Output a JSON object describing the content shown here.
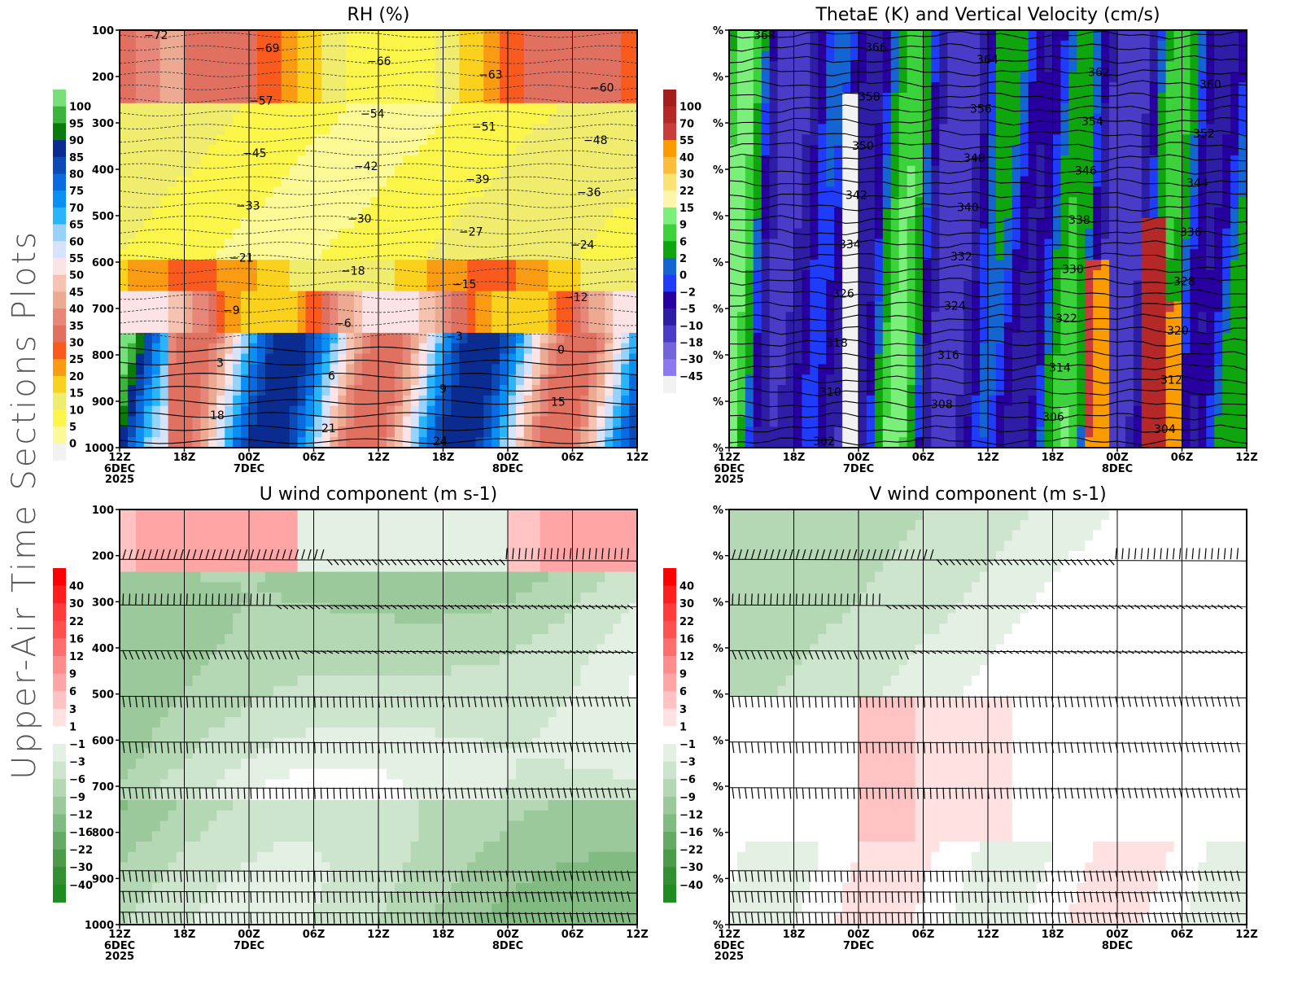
{
  "page_title": "Upper-Air Time Sections Plots",
  "chart_data": [
    {
      "id": "rh",
      "type": "heatmap",
      "title": "RH (%)",
      "xlabel": "",
      "ylabel": "",
      "x_ticks": [
        "12Z",
        "18Z",
        "00Z",
        "06Z",
        "12Z",
        "18Z",
        "00Z",
        "06Z",
        "12Z"
      ],
      "x_date_labels": [
        {
          "index": 0,
          "lines": [
            "6DEC",
            "2025"
          ]
        },
        {
          "index": 2,
          "lines": [
            "7DEC"
          ]
        },
        {
          "index": 6,
          "lines": [
            "8DEC"
          ]
        }
      ],
      "y_ticks": [
        "100",
        "200",
        "300",
        "400",
        "500",
        "600",
        "700",
        "800",
        "900",
        "1000"
      ],
      "y_range": [
        100,
        1000
      ],
      "y_inverted": true,
      "colorbar": {
        "levels": [
          "100",
          "95",
          "90",
          "85",
          "80",
          "75",
          "70",
          "65",
          "60",
          "55",
          "50",
          "45",
          "40",
          "35",
          "30",
          "25",
          "20",
          "15",
          "10",
          "5",
          "0"
        ],
        "colors": [
          "#77e07a",
          "#3cb43c",
          "#0a7a0a",
          "#0a2b8f",
          "#0a4bb8",
          "#0a6be0",
          "#0a8ff5",
          "#2ab4fa",
          "#96d2fa",
          "#d7e3fa",
          "#fce3e6",
          "#f5c3b0",
          "#ebaa91",
          "#e6877a",
          "#e07060",
          "#fa5a1e",
          "#fa9b14",
          "#fad21e",
          "#f0ec6e",
          "#fcf54a",
          "#fcfa96",
          "#f2f2f2"
        ]
      },
      "overlay_contours": {
        "variable": "temperature",
        "labels": [
          "-72",
          "-69",
          "-66",
          "-63",
          "-60",
          "-57",
          "-54",
          "-51",
          "-48",
          "-45",
          "-42",
          "-39",
          "-36",
          "-33",
          "-30",
          "-27",
          "-24",
          "-21",
          "-18",
          "-15",
          "-12",
          "-9",
          "-6",
          "-3",
          "0",
          "3",
          "6",
          "9",
          "15",
          "18",
          "21",
          "24"
        ]
      }
    },
    {
      "id": "thetae",
      "type": "heatmap",
      "title": "ThetaE (K) and Vertical Velocity (cm/s)",
      "x_ticks": [
        "12Z",
        "18Z",
        "00Z",
        "06Z",
        "12Z",
        "18Z",
        "00Z",
        "06Z",
        "12Z"
      ],
      "x_date_labels": [
        {
          "index": 0,
          "lines": [
            "6DEC",
            "2025"
          ]
        },
        {
          "index": 2,
          "lines": [
            "7DEC"
          ]
        },
        {
          "index": 6,
          "lines": [
            "8DEC"
          ]
        }
      ],
      "y_ticks": [
        "%",
        "%",
        "%",
        "%",
        "%",
        "%",
        "%",
        "%",
        "%",
        "%"
      ],
      "y_inverted": true,
      "colorbar": {
        "levels": [
          "100",
          "70",
          "55",
          "40",
          "30",
          "22",
          "15",
          "9",
          "6",
          "2",
          "0",
          "-2",
          "-5",
          "-10",
          "-18",
          "-30",
          "-45"
        ],
        "colors": [
          "#a51e1e",
          "#b42828",
          "#c83c3c",
          "#fa9b00",
          "#fabe3c",
          "#fce173",
          "#fcf5aa",
          "#7af07a",
          "#3cd23c",
          "#0ea50e",
          "#1464d2",
          "#1e3cfa",
          "#2800a0",
          "#2d1ea5",
          "#4b3cc8",
          "#7364dc",
          "#8c78f0",
          "#f2f2f2"
        ]
      },
      "overlay_contours": {
        "variable": "thetaE",
        "labels": [
          "368",
          "366",
          "364",
          "362",
          "360",
          "358",
          "356",
          "354",
          "352",
          "350",
          "348",
          "346",
          "344",
          "342",
          "340",
          "338",
          "336",
          "334",
          "332",
          "330",
          "328",
          "326",
          "324",
          "322",
          "320",
          "318",
          "316",
          "314",
          "312",
          "310",
          "308",
          "306",
          "304",
          "302"
        ]
      }
    },
    {
      "id": "uwind",
      "type": "heatmap",
      "title": "U wind component (m s-1)",
      "x_ticks": [
        "12Z",
        "18Z",
        "00Z",
        "06Z",
        "12Z",
        "18Z",
        "00Z",
        "06Z",
        "12Z"
      ],
      "x_date_labels": [
        {
          "index": 0,
          "lines": [
            "6DEC",
            "2025"
          ]
        },
        {
          "index": 2,
          "lines": [
            "7DEC"
          ]
        },
        {
          "index": 6,
          "lines": [
            "8DEC"
          ]
        }
      ],
      "y_ticks": [
        "100",
        "200",
        "300",
        "400",
        "500",
        "600",
        "700",
        "800",
        "900",
        "1000"
      ],
      "y_range": [
        100,
        1000
      ],
      "y_inverted": true,
      "colorbar": {
        "levels": [
          "40",
          "30",
          "22",
          "16",
          "12",
          "9",
          "6",
          "3",
          "1",
          "-1",
          "-3",
          "-6",
          "-9",
          "-12",
          "-16",
          "-22",
          "-30",
          "-40"
        ],
        "colors": [
          "#ff0000",
          "#ff1e1e",
          "#ff3c3c",
          "#ff5050",
          "#ff6e6e",
          "#ff8c8c",
          "#ffa5a5",
          "#ffc3c3",
          "#ffe1e1",
          "#ffffff",
          "#e3f0e3",
          "#cde4cd",
          "#b4d7b4",
          "#9bc99b",
          "#82bb82",
          "#64aa64",
          "#4b9b4b",
          "#329032",
          "#1e8c1e"
        ]
      },
      "barb_levels": [
        "200",
        "300",
        "400",
        "500",
        "600",
        "700",
        "850",
        "900",
        "950",
        "1000"
      ]
    },
    {
      "id": "vwind",
      "type": "heatmap",
      "title": "V wind component (m s-1)",
      "x_ticks": [
        "12Z",
        "18Z",
        "00Z",
        "06Z",
        "12Z",
        "18Z",
        "00Z",
        "06Z",
        "12Z"
      ],
      "x_date_labels": [
        {
          "index": 0,
          "lines": [
            "6DEC",
            "2025"
          ]
        },
        {
          "index": 2,
          "lines": [
            "7DEC"
          ]
        },
        {
          "index": 6,
          "lines": [
            "8DEC"
          ]
        }
      ],
      "y_ticks": [
        "%",
        "%",
        "%",
        "%",
        "%",
        "%",
        "%",
        "%",
        "%",
        "%"
      ],
      "y_inverted": true,
      "colorbar": {
        "levels": [
          "40",
          "30",
          "22",
          "16",
          "12",
          "9",
          "6",
          "3",
          "1",
          "-1",
          "-3",
          "-6",
          "-9",
          "-12",
          "-16",
          "-22",
          "-30",
          "-40"
        ],
        "colors": [
          "#ff0000",
          "#ff1e1e",
          "#ff3c3c",
          "#ff5050",
          "#ff6e6e",
          "#ff8c8c",
          "#ffa5a5",
          "#ffc3c3",
          "#ffe1e1",
          "#ffffff",
          "#e3f0e3",
          "#cde4cd",
          "#b4d7b4",
          "#9bc99b",
          "#82bb82",
          "#64aa64",
          "#4b9b4b",
          "#329032",
          "#1e8c1e"
        ]
      },
      "barb_levels": [
        "200",
        "300",
        "400",
        "500",
        "600",
        "700",
        "850",
        "900",
        "950",
        "1000"
      ]
    }
  ]
}
